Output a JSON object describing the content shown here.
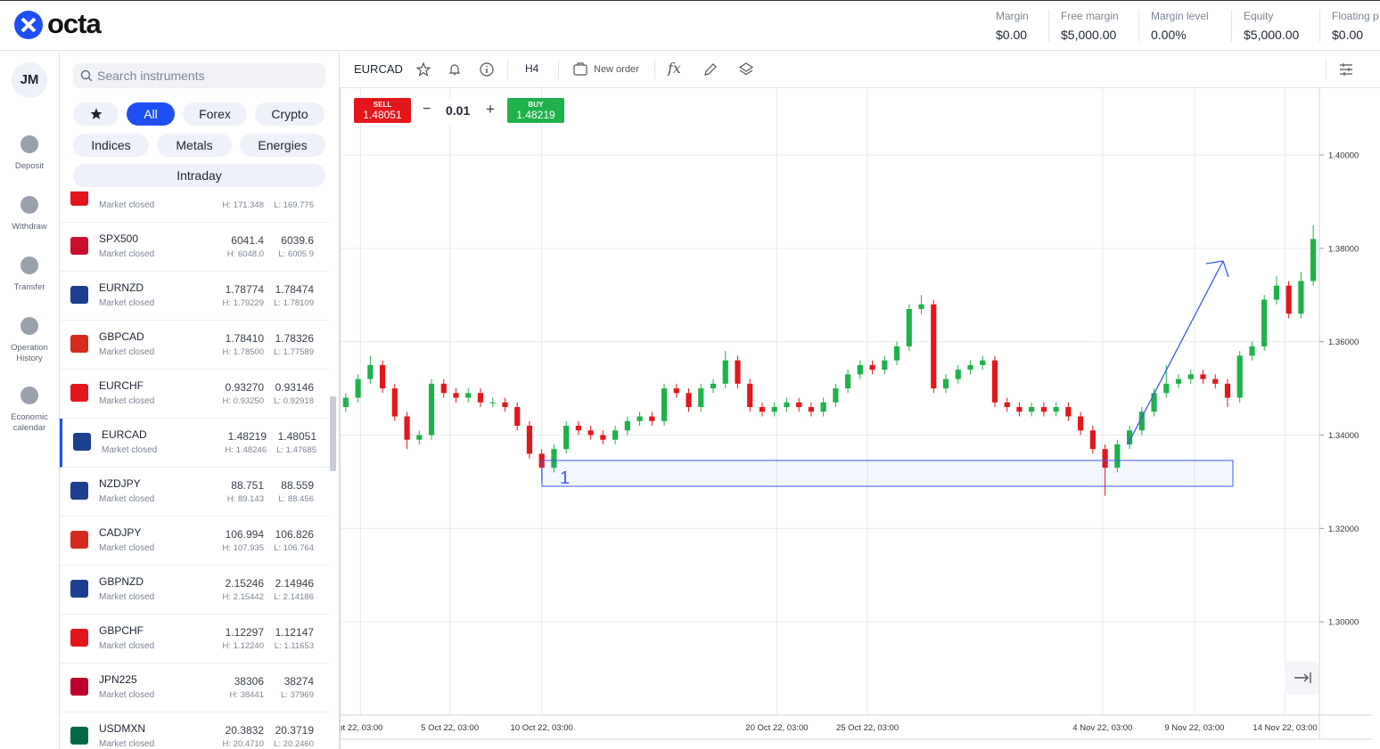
{
  "header": {
    "logo": "octa",
    "stats": [
      {
        "label": "Margin",
        "value": "$0.00"
      },
      {
        "label": "Free margin",
        "value": "$5,000.00"
      },
      {
        "label": "Margin level",
        "value": "0.00%"
      },
      {
        "label": "Equity",
        "value": "$5,000.00"
      },
      {
        "label": "Floating p",
        "value": "$0.00"
      }
    ]
  },
  "nav": {
    "avatar": "JM",
    "items": [
      "Deposit",
      "Withdraw",
      "Transfer",
      "Operation History",
      "Economic calendar"
    ]
  },
  "instruments": {
    "search": "Search instruments",
    "filters": [
      "All",
      "Forex",
      "Crypto",
      "Indices",
      "Metals",
      "Energies",
      "Intraday"
    ],
    "rows": [
      {
        "status": "Market closed",
        "high": "H: 171.348",
        "low": "L: 169.775"
      },
      {
        "name": "SPX500",
        "status": "Market closed",
        "bid": "6041.4",
        "ask": "6039.6",
        "high": "H: 6048.0",
        "low": "L: 6005.9"
      },
      {
        "name": "EURNZD",
        "status": "Market closed",
        "bid": "1.78774",
        "ask": "1.78474",
        "high": "H: 1.79229",
        "low": "L: 1.78109"
      },
      {
        "name": "GBPCAD",
        "status": "Market closed",
        "bid": "1.78410",
        "ask": "1.78326",
        "high": "H: 1.78500",
        "low": "L: 1.77589"
      },
      {
        "name": "EURCHF",
        "status": "Market closed",
        "bid": "0.93270",
        "ask": "0.93146",
        "high": "H: 0.93250",
        "low": "L: 0.92918"
      },
      {
        "name": "EURCAD",
        "status": "Market closed",
        "bid": "1.48219",
        "ask": "1.48051",
        "high": "H: 1.48246",
        "low": "L: 1.47685"
      },
      {
        "name": "NZDJPY",
        "status": "Market closed",
        "bid": "88.751",
        "ask": "88.559",
        "high": "H: 89.143",
        "low": "L: 88.456"
      },
      {
        "name": "CADJPY",
        "status": "Market closed",
        "bid": "106.994",
        "ask": "106.826",
        "high": "H: 107.935",
        "low": "L: 106.764"
      },
      {
        "name": "GBPNZD",
        "status": "Market closed",
        "bid": "2.15246",
        "ask": "2.14946",
        "high": "H: 2.15442",
        "low": "L: 2.14186"
      },
      {
        "name": "GBPCHF",
        "status": "Market closed",
        "bid": "1.12297",
        "ask": "1.12147",
        "high": "H: 1.12240",
        "low": "L: 1.11653"
      },
      {
        "name": "JPN225",
        "status": "Market closed",
        "bid": "38306",
        "ask": "38274",
        "high": "H: 38441",
        "low": "L: 37969"
      },
      {
        "name": "USDMXN",
        "status": "Market closed",
        "bid": "20.3832",
        "ask": "20.3719",
        "high": "H: 20.4710",
        "low": "L: 20.2460"
      }
    ]
  },
  "toolbar": {
    "symbol": "EURCAD",
    "timeframe": "H4",
    "new_order": "New order"
  },
  "trade": {
    "sell_label": "SELL",
    "sell": "1.48051",
    "lot": "0.01",
    "buy_label": "BUY",
    "buy": "1.48219"
  },
  "chart_data": {
    "type": "candlestick",
    "up_color": "#1fb14b",
    "down_color": "#e3161b",
    "grid": true,
    "annotation": "1",
    "x": [
      0,
      1,
      2,
      3,
      4,
      5,
      6,
      7,
      8,
      9,
      10,
      11,
      12,
      13,
      14,
      15,
      16,
      17,
      18,
      19,
      20,
      21,
      22,
      23,
      24,
      25,
      26,
      27,
      28,
      29,
      30,
      31,
      32,
      33,
      34,
      35,
      36,
      37,
      38,
      39,
      40,
      41,
      42,
      43,
      44,
      45,
      46,
      47,
      48,
      49,
      50,
      51,
      52,
      53,
      54,
      55,
      56,
      57,
      58,
      59,
      60,
      61,
      62,
      63,
      64,
      65,
      66,
      67,
      68,
      69,
      70,
      71,
      72,
      73,
      74,
      75,
      76,
      77,
      78,
      79
    ],
    "open": [
      1.346,
      1.348,
      1.352,
      1.355,
      1.35,
      1.344,
      1.339,
      1.34,
      1.351,
      1.349,
      1.348,
      1.349,
      1.347,
      1.347,
      1.346,
      1.342,
      1.336,
      1.333,
      1.337,
      1.342,
      1.341,
      1.34,
      1.339,
      1.341,
      1.343,
      1.344,
      1.343,
      1.35,
      1.349,
      1.346,
      1.35,
      1.351,
      1.356,
      1.351,
      1.346,
      1.345,
      1.346,
      1.347,
      1.346,
      1.345,
      1.347,
      1.35,
      1.353,
      1.355,
      1.354,
      1.356,
      1.359,
      1.367,
      1.368,
      1.35,
      1.352,
      1.354,
      1.355,
      1.356,
      1.347,
      1.346,
      1.345,
      1.346,
      1.345,
      1.346,
      1.344,
      1.341,
      1.337,
      1.333,
      1.338,
      1.341,
      1.345,
      1.349,
      1.351,
      1.352,
      1.353,
      1.352,
      1.351,
      1.348,
      1.357,
      1.359,
      1.369,
      1.372,
      1.366,
      1.373
    ],
    "high": [
      1.349,
      1.353,
      1.357,
      1.356,
      1.351,
      1.345,
      1.341,
      1.352,
      1.352,
      1.35,
      1.35,
      1.35,
      1.348,
      1.348,
      1.347,
      1.343,
      1.337,
      1.338,
      1.343,
      1.343,
      1.342,
      1.341,
      1.342,
      1.344,
      1.345,
      1.345,
      1.351,
      1.351,
      1.35,
      1.351,
      1.352,
      1.358,
      1.357,
      1.352,
      1.347,
      1.347,
      1.348,
      1.348,
      1.347,
      1.348,
      1.351,
      1.354,
      1.356,
      1.356,
      1.357,
      1.36,
      1.368,
      1.37,
      1.369,
      1.353,
      1.355,
      1.356,
      1.357,
      1.357,
      1.348,
      1.347,
      1.347,
      1.347,
      1.347,
      1.347,
      1.345,
      1.342,
      1.338,
      1.339,
      1.342,
      1.346,
      1.35,
      1.355,
      1.353,
      1.354,
      1.354,
      1.353,
      1.352,
      1.358,
      1.36,
      1.37,
      1.374,
      1.373,
      1.375,
      1.385
    ],
    "low": [
      1.345,
      1.347,
      1.351,
      1.349,
      1.343,
      1.337,
      1.338,
      1.339,
      1.348,
      1.347,
      1.347,
      1.346,
      1.346,
      1.345,
      1.341,
      1.335,
      1.33,
      1.332,
      1.336,
      1.34,
      1.339,
      1.338,
      1.338,
      1.34,
      1.342,
      1.342,
      1.342,
      1.348,
      1.345,
      1.345,
      1.349,
      1.35,
      1.35,
      1.345,
      1.344,
      1.344,
      1.345,
      1.345,
      1.344,
      1.344,
      1.346,
      1.349,
      1.352,
      1.353,
      1.353,
      1.355,
      1.358,
      1.366,
      1.349,
      1.349,
      1.351,
      1.353,
      1.354,
      1.346,
      1.345,
      1.344,
      1.344,
      1.344,
      1.344,
      1.343,
      1.34,
      1.336,
      1.327,
      1.332,
      1.337,
      1.34,
      1.344,
      1.348,
      1.35,
      1.351,
      1.351,
      1.35,
      1.346,
      1.347,
      1.356,
      1.358,
      1.368,
      1.365,
      1.365,
      1.372
    ],
    "close": [
      1.348,
      1.352,
      1.355,
      1.35,
      1.344,
      1.339,
      1.34,
      1.351,
      1.349,
      1.348,
      1.349,
      1.347,
      1.347,
      1.346,
      1.342,
      1.336,
      1.333,
      1.337,
      1.342,
      1.341,
      1.34,
      1.339,
      1.341,
      1.343,
      1.344,
      1.343,
      1.35,
      1.349,
      1.346,
      1.35,
      1.351,
      1.356,
      1.351,
      1.346,
      1.345,
      1.346,
      1.347,
      1.346,
      1.345,
      1.347,
      1.35,
      1.353,
      1.355,
      1.354,
      1.356,
      1.359,
      1.367,
      1.368,
      1.35,
      1.352,
      1.354,
      1.355,
      1.356,
      1.347,
      1.346,
      1.345,
      1.346,
      1.345,
      1.346,
      1.344,
      1.341,
      1.337,
      1.333,
      1.338,
      1.341,
      1.345,
      1.349,
      1.351,
      1.352,
      1.353,
      1.352,
      1.351,
      1.348,
      1.357,
      1.359,
      1.369,
      1.372,
      1.366,
      1.373,
      1.382
    ],
    "xlim": [
      -0.5,
      79.5
    ],
    "xticks": [
      {
        "value": 1.2,
        "label": "pt 22, 03:00"
      },
      {
        "value": 8.5,
        "label": "5 Oct 22, 03:00"
      },
      {
        "value": 16,
        "label": "10 Oct 22, 03:00"
      },
      {
        "value": 35.2,
        "label": "20 Oct 22, 03:00"
      },
      {
        "value": 42.6,
        "label": "25 Oct 22, 03:00"
      },
      {
        "value": 61.8,
        "label": "4 Nov 22, 03:00"
      },
      {
        "value": 69.3,
        "label": "9 Nov 22, 03:00"
      },
      {
        "value": 76.7,
        "label": "14 Nov 22, 03:00"
      }
    ],
    "ylim": [
      1.28,
      1.4145
    ],
    "yticks": [
      {
        "value": 1.4,
        "label": "1.40000"
      },
      {
        "value": 1.38,
        "label": "1.38000"
      },
      {
        "value": 1.36,
        "label": "1.36000"
      },
      {
        "value": 1.34,
        "label": "1.34000"
      },
      {
        "value": 1.32,
        "label": "1.32000"
      },
      {
        "value": 1.3,
        "label": "1.30000"
      }
    ]
  }
}
